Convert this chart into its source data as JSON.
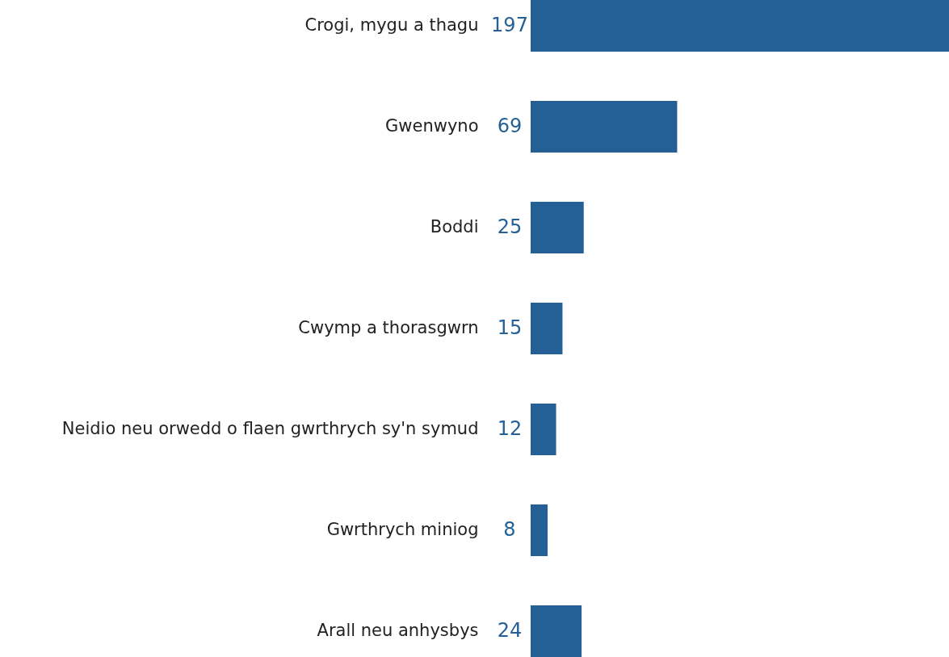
{
  "chart_data": {
    "type": "bar",
    "orientation": "horizontal",
    "categories": [
      "Crogi, mygu a thagu",
      "Gwenwyno",
      "Boddi",
      "Cwymp a thorasgwrn",
      "Neidio neu orwedd o flaen gwrthrych sy'n symud",
      "Gwrthrych miniog",
      "Arall neu anhysbys"
    ],
    "values": [
      197,
      69,
      25,
      15,
      12,
      8,
      24
    ],
    "color": "#246096",
    "data_labels": true
  }
}
